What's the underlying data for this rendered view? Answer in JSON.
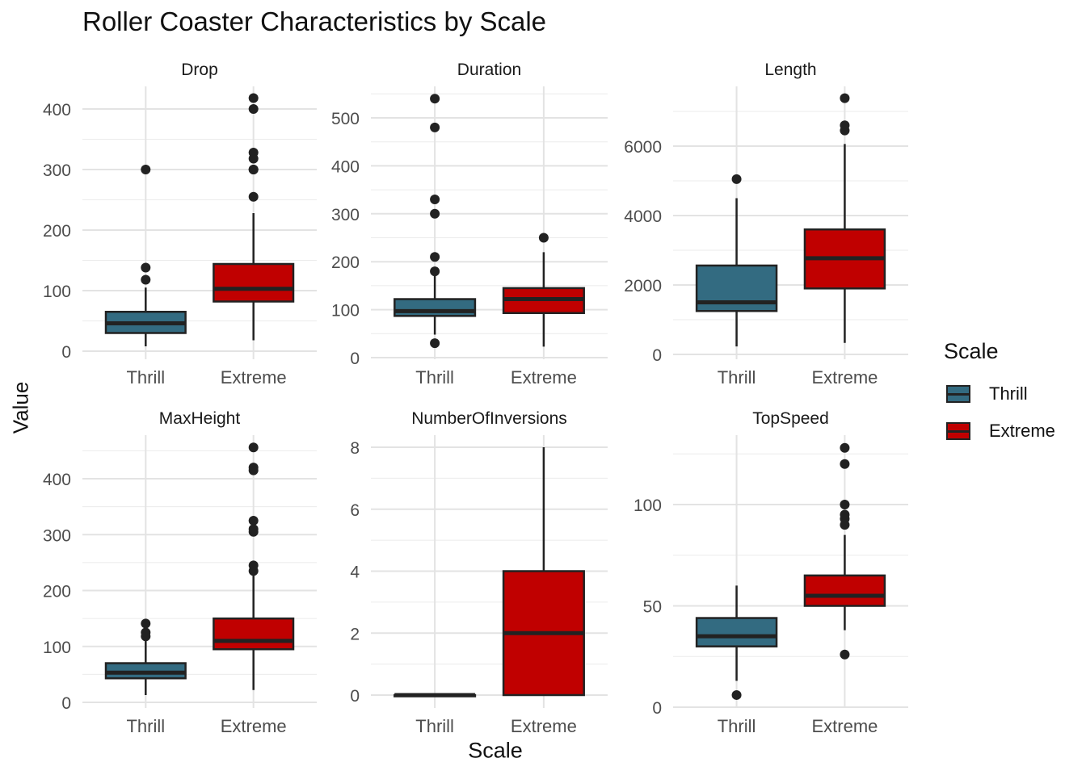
{
  "chart_data": {
    "type": "boxplot",
    "title": "Roller Coaster Characteristics by Scale",
    "xlabel": "Scale",
    "ylabel": "Value",
    "legend": {
      "title": "Scale",
      "position": "right",
      "entries": [
        {
          "name": "Thrill",
          "color": "#336B81"
        },
        {
          "name": "Extreme",
          "color": "#C00000"
        }
      ]
    },
    "categories": [
      "Thrill",
      "Extreme"
    ],
    "colors": {
      "Thrill": "#336B81",
      "Extreme": "#C00000"
    },
    "grid": true,
    "panels": [
      {
        "name": "Drop",
        "ylim": [
          0,
          420
        ],
        "yticks": [
          0,
          100,
          200,
          300,
          400
        ],
        "boxes": [
          {
            "category": "Thrill",
            "whisker_low": 8,
            "q1": 30,
            "median": 46,
            "q3": 65,
            "whisker_high": 105,
            "outliers": [
              118,
              138,
              300
            ]
          },
          {
            "category": "Extreme",
            "whisker_low": 18,
            "q1": 82,
            "median": 103,
            "q3": 144,
            "whisker_high": 228,
            "outliers": [
              255,
              300,
              300,
              318,
              328,
              400,
              418
            ]
          }
        ]
      },
      {
        "name": "Duration",
        "ylim": [
          0,
          550
        ],
        "yticks": [
          0,
          100,
          200,
          300,
          400,
          500
        ],
        "boxes": [
          {
            "category": "Thrill",
            "whisker_low": 48,
            "q1": 87,
            "median": 97,
            "q3": 122,
            "whisker_high": 175,
            "outliers": [
              30,
              180,
              210,
              300,
              330,
              480,
              540
            ]
          },
          {
            "category": "Extreme",
            "whisker_low": 23,
            "q1": 93,
            "median": 122,
            "q3": 145,
            "whisker_high": 220,
            "outliers": [
              250
            ]
          }
        ]
      },
      {
        "name": "Length",
        "ylim": [
          0,
          7400
        ],
        "yticks": [
          0,
          2000,
          4000,
          6000
        ],
        "boxes": [
          {
            "category": "Thrill",
            "whisker_low": 230,
            "q1": 1250,
            "median": 1500,
            "q3": 2560,
            "whisker_high": 4500,
            "outliers": [
              5050
            ]
          },
          {
            "category": "Extreme",
            "whisker_low": 330,
            "q1": 1900,
            "median": 2770,
            "q3": 3600,
            "whisker_high": 6060,
            "outliers": [
              6450,
              6600,
              7380
            ]
          }
        ]
      },
      {
        "name": "MaxHeight",
        "ylim": [
          0,
          456
        ],
        "yticks": [
          0,
          100,
          200,
          300,
          400
        ],
        "boxes": [
          {
            "category": "Thrill",
            "whisker_low": 13,
            "q1": 43,
            "median": 53,
            "q3": 70,
            "whisker_high": 112,
            "outliers": [
              118,
              125,
              141
            ]
          },
          {
            "category": "Extreme",
            "whisker_low": 22,
            "q1": 95,
            "median": 110,
            "q3": 150,
            "whisker_high": 228,
            "outliers": [
              235,
              245,
              305,
              310,
              325,
              415,
              420,
              456
            ]
          }
        ]
      },
      {
        "name": "NumberOfInversions",
        "ylim": [
          0,
          8
        ],
        "yticks": [
          0,
          2,
          4,
          6,
          8
        ],
        "boxes": [
          {
            "category": "Thrill",
            "whisker_low": 0,
            "q1": 0,
            "median": 0,
            "q3": 0,
            "whisker_high": 0,
            "outliers": []
          },
          {
            "category": "Extreme",
            "whisker_low": 0,
            "q1": 0,
            "median": 2,
            "q3": 4,
            "whisker_high": 8,
            "outliers": []
          }
        ]
      },
      {
        "name": "TopSpeed",
        "ylim": [
          0,
          128
        ],
        "yticks": [
          0,
          50,
          100
        ],
        "boxes": [
          {
            "category": "Thrill",
            "whisker_low": 13,
            "q1": 30,
            "median": 35,
            "q3": 44,
            "whisker_high": 60,
            "outliers": [
              6
            ]
          },
          {
            "category": "Extreme",
            "whisker_low": 38,
            "q1": 50,
            "median": 55,
            "q3": 65,
            "whisker_high": 85,
            "outliers": [
              26,
              90,
              93,
              95,
              100,
              120,
              128
            ]
          }
        ]
      }
    ]
  }
}
